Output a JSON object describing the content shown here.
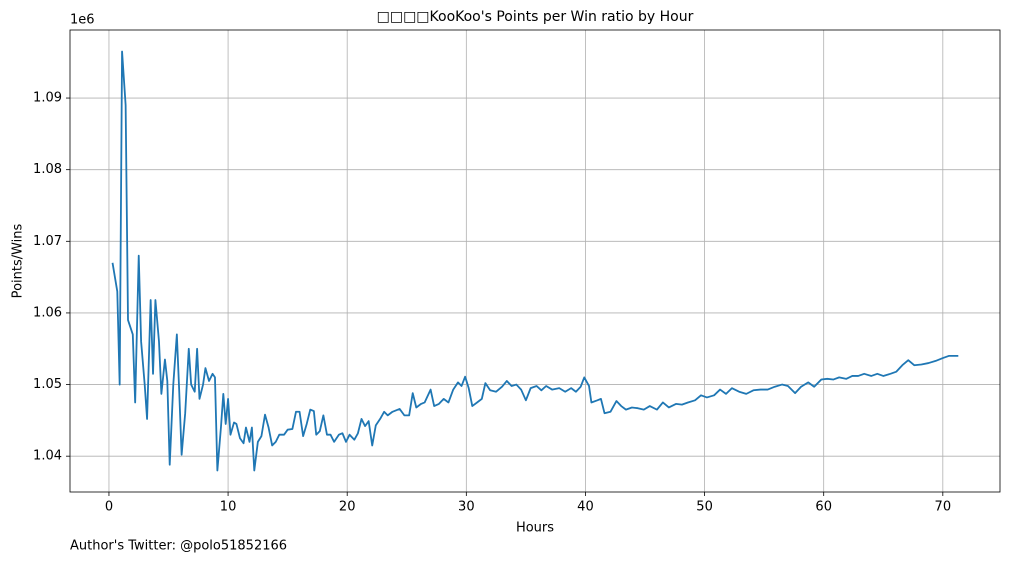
{
  "chart_data": {
    "type": "line",
    "title": "□□□□KooKoo's Points per Win ratio by Hour",
    "x_label": "Hours",
    "y_label": "Points/Wins",
    "y_offset_label": "1e6",
    "footer": "Author's Twitter: @polo51852166",
    "color": "#1f77b4",
    "grid": true,
    "xlim": [
      -3.27,
      74.8
    ],
    "ylim": [
      1.035,
      1.0995
    ],
    "xticks": [
      0,
      10,
      20,
      30,
      40,
      50,
      60,
      70
    ],
    "yticks": [
      1.04,
      1.05,
      1.06,
      1.07,
      1.08,
      1.09
    ],
    "x": [
      0.3,
      0.7,
      0.9,
      1.1,
      1.4,
      1.6,
      2.0,
      2.2,
      2.5,
      2.7,
      3.0,
      3.2,
      3.5,
      3.7,
      3.9,
      4.2,
      4.4,
      4.7,
      4.9,
      5.1,
      5.4,
      5.7,
      5.9,
      6.1,
      6.4,
      6.7,
      6.9,
      7.2,
      7.4,
      7.6,
      7.9,
      8.1,
      8.4,
      8.7,
      8.9,
      9.1,
      9.4,
      9.6,
      9.8,
      10.0,
      10.2,
      10.5,
      10.7,
      11.0,
      11.3,
      11.5,
      11.8,
      12.0,
      12.2,
      12.5,
      12.8,
      13.1,
      13.4,
      13.7,
      14.0,
      14.3,
      14.7,
      15.0,
      15.4,
      15.7,
      16.0,
      16.3,
      16.6,
      16.9,
      17.2,
      17.4,
      17.7,
      18.0,
      18.3,
      18.6,
      18.9,
      19.3,
      19.6,
      19.9,
      20.2,
      20.6,
      20.9,
      21.2,
      21.5,
      21.8,
      22.1,
      22.4,
      22.8,
      23.1,
      23.4,
      23.8,
      24.4,
      24.8,
      25.2,
      25.5,
      25.8,
      26.2,
      26.5,
      27.0,
      27.3,
      27.7,
      28.1,
      28.5,
      28.9,
      29.3,
      29.6,
      29.9,
      30.2,
      30.5,
      30.9,
      31.3,
      31.6,
      32.0,
      32.5,
      33.0,
      33.4,
      33.8,
      34.2,
      34.6,
      35.0,
      35.4,
      35.9,
      36.3,
      36.7,
      37.2,
      37.8,
      38.3,
      38.8,
      39.2,
      39.6,
      39.9,
      40.3,
      40.5,
      41.0,
      41.3,
      41.6,
      42.1,
      42.6,
      43.0,
      43.4,
      43.9,
      44.4,
      44.9,
      45.4,
      46.0,
      46.5,
      47.0,
      47.6,
      48.1,
      48.6,
      49.2,
      49.7,
      50.2,
      50.8,
      51.3,
      51.8,
      52.3,
      52.9,
      53.5,
      54.1,
      54.7,
      55.3,
      55.9,
      56.5,
      57.0,
      57.6,
      58.1,
      58.7,
      59.2,
      59.8,
      60.3,
      60.8,
      61.3,
      61.9,
      62.4,
      62.9,
      63.4,
      64.0,
      64.5,
      65.0,
      65.6,
      66.1,
      66.6,
      67.1,
      67.6,
      68.2,
      68.8,
      69.4,
      70.0,
      70.5,
      71.3
    ],
    "values": [
      1.067,
      1.063,
      1.05,
      1.0965,
      1.089,
      1.059,
      1.057,
      1.0475,
      1.068,
      1.056,
      1.05,
      1.0452,
      1.0618,
      1.0515,
      1.0618,
      1.056,
      1.0487,
      1.0535,
      1.0505,
      1.0388,
      1.05,
      1.057,
      1.049,
      1.0402,
      1.046,
      1.055,
      1.05,
      1.049,
      1.055,
      1.048,
      1.05,
      1.0523,
      1.0505,
      1.0515,
      1.051,
      1.038,
      1.044,
      1.0487,
      1.0445,
      1.048,
      1.043,
      1.0447,
      1.0445,
      1.0425,
      1.0418,
      1.044,
      1.042,
      1.044,
      1.038,
      1.042,
      1.0428,
      1.0458,
      1.044,
      1.0415,
      1.042,
      1.043,
      1.043,
      1.0437,
      1.0438,
      1.0462,
      1.0462,
      1.0428,
      1.0445,
      1.0465,
      1.0463,
      1.043,
      1.0435,
      1.0457,
      1.043,
      1.043,
      1.042,
      1.043,
      1.0432,
      1.042,
      1.043,
      1.0423,
      1.0432,
      1.0452,
      1.0442,
      1.0449,
      1.0415,
      1.0443,
      1.0453,
      1.0462,
      1.0457,
      1.0462,
      1.0466,
      1.0457,
      1.0457,
      1.0488,
      1.0468,
      1.0473,
      1.0475,
      1.0493,
      1.047,
      1.0473,
      1.048,
      1.0475,
      1.0493,
      1.0503,
      1.0498,
      1.0511,
      1.0495,
      1.047,
      1.0475,
      1.048,
      1.0502,
      1.0492,
      1.049,
      1.0497,
      1.0505,
      1.0498,
      1.05,
      1.0493,
      1.0478,
      1.0495,
      1.0498,
      1.0492,
      1.0498,
      1.0493,
      1.0495,
      1.049,
      1.0495,
      1.049,
      1.0497,
      1.051,
      1.0498,
      1.0475,
      1.0478,
      1.048,
      1.046,
      1.0462,
      1.0477,
      1.047,
      1.0465,
      1.0468,
      1.0467,
      1.0465,
      1.047,
      1.0465,
      1.0475,
      1.0468,
      1.0473,
      1.0472,
      1.0475,
      1.0478,
      1.0485,
      1.0482,
      1.0485,
      1.0493,
      1.0487,
      1.0495,
      1.049,
      1.0487,
      1.0492,
      1.0493,
      1.0493,
      1.0497,
      1.05,
      1.0498,
      1.0488,
      1.0497,
      1.0503,
      1.0497,
      1.0507,
      1.0508,
      1.0507,
      1.051,
      1.0508,
      1.0512,
      1.0512,
      1.0515,
      1.0512,
      1.0515,
      1.0512,
      1.0515,
      1.0518,
      1.0527,
      1.0534,
      1.0527,
      1.0528,
      1.053,
      1.0533,
      1.0537,
      1.054,
      1.054
    ]
  }
}
